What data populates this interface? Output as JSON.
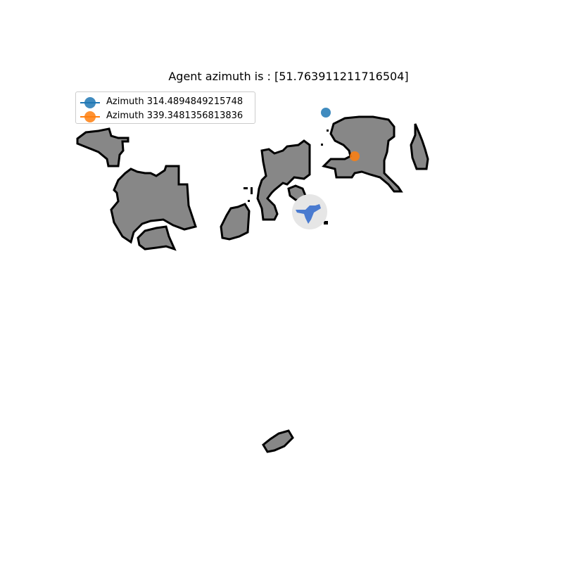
{
  "title": "Agent azimuth is : [51.763911211716504]",
  "legend": {
    "items": [
      {
        "label": "Azimuth 314.4894849215748",
        "color": "#1f77b4"
      },
      {
        "label": "Azimuth 339.3481356813836",
        "color": "#ff7f0e"
      }
    ]
  },
  "map": {
    "obstacle_fill": "#878787",
    "obstacle_outline": "#000000",
    "agent_color": "#4a7bd0",
    "agent_halo_color": "#e6e6e6"
  }
}
